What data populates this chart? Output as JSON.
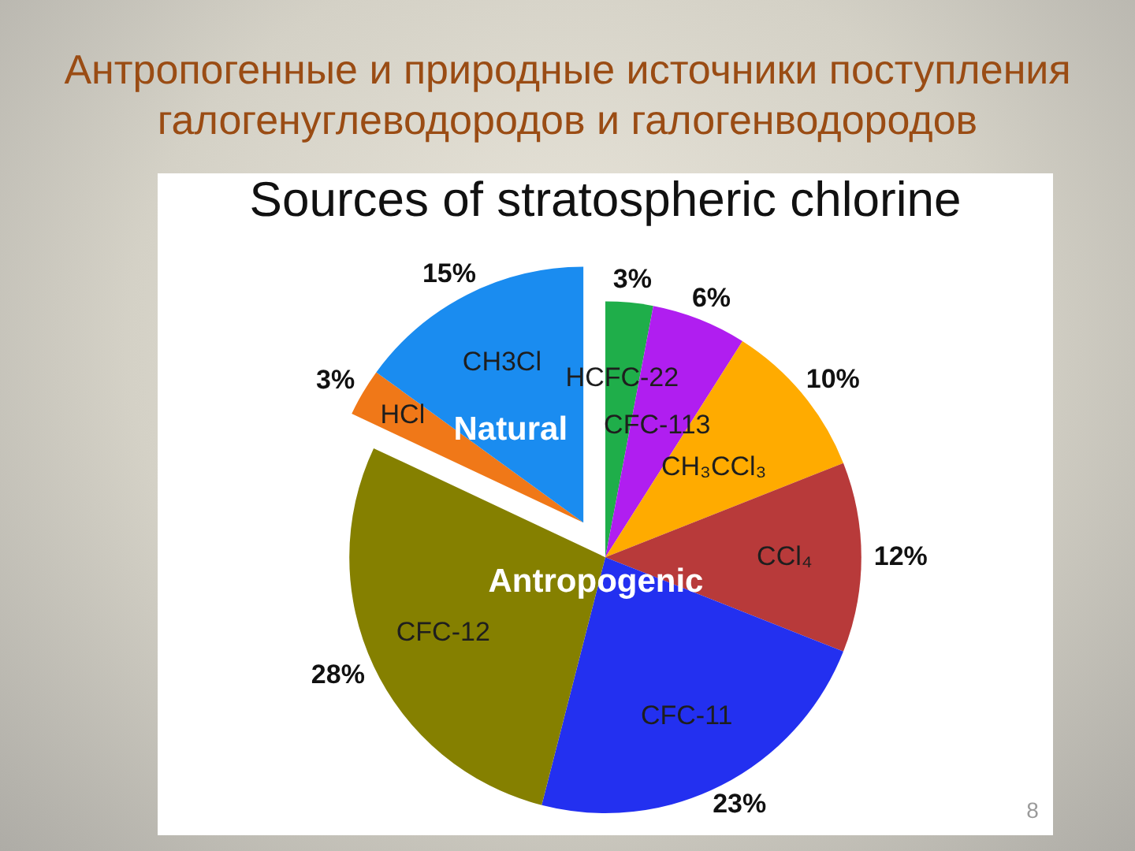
{
  "chart_data": {
    "type": "pie",
    "title": "Антропогенные и природные источники поступления галогенуглеводородов и галогенводородов",
    "subtitle": "Sources of stratospheric chlorine",
    "categories": [
      "HCFC-22",
      "CFC-113",
      "CH₃CCl₃",
      "CCl₄",
      "CFC-11",
      "CFC-12",
      "HCl",
      "CH3Cl"
    ],
    "values": [
      3,
      6,
      10,
      12,
      23,
      28,
      3,
      15
    ],
    "value_labels": [
      "3%",
      "6%",
      "10%",
      "12%",
      "23%",
      "28%",
      "3%",
      "15%"
    ],
    "colors": [
      "#1fae4a",
      "#b01ef0",
      "#ffab00",
      "#b83a3a",
      "#2330f0",
      "#858000",
      "#f07818",
      "#1a8cf0"
    ],
    "annotations": [
      "Natural",
      "Antropogenic",
      "8"
    ]
  }
}
